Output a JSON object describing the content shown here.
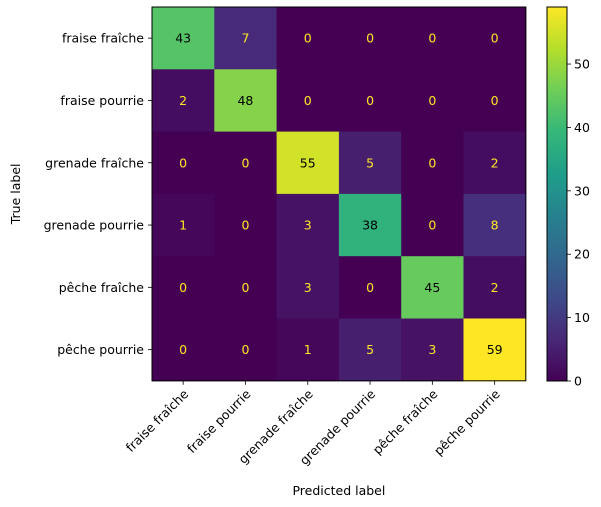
{
  "chart_data": {
    "type": "heatmap",
    "xlabel": "Predicted label",
    "ylabel": "True label",
    "x_categories": [
      "fraise fraîche",
      "fraise pourrie",
      "grenade fraîche",
      "grenade pourrie",
      "pêche fraîche",
      "pêche pourrie"
    ],
    "y_categories": [
      "fraise fraîche",
      "fraise pourrie",
      "grenade fraîche",
      "grenade pourrie",
      "pêche fraîche",
      "pêche pourrie"
    ],
    "matrix": [
      [
        43,
        7,
        0,
        0,
        0,
        0
      ],
      [
        2,
        48,
        0,
        0,
        0,
        0
      ],
      [
        0,
        0,
        55,
        5,
        0,
        2
      ],
      [
        1,
        0,
        3,
        38,
        0,
        8
      ],
      [
        0,
        0,
        3,
        0,
        45,
        2
      ],
      [
        0,
        0,
        1,
        5,
        3,
        59
      ]
    ],
    "colorbar": {
      "colormap": "viridis",
      "min": 0,
      "max": 59,
      "ticks": [
        "0",
        "10",
        "20",
        "30",
        "40",
        "50"
      ]
    },
    "text_colors": {
      "low": "#fde725",
      "high": "#000000"
    }
  }
}
